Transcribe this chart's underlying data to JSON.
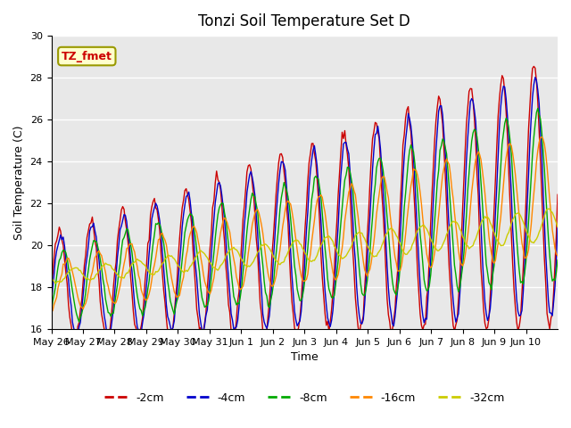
{
  "title": "Tonzi Soil Temperature Set D",
  "xlabel": "Time",
  "ylabel": "Soil Temperature (C)",
  "ylim": [
    16,
    30
  ],
  "background_color": "#ffffff",
  "plot_bg_color": "#e8e8e8",
  "grid_color": "#ffffff",
  "legend_label": "TZ_fmet",
  "series_labels": [
    "-2cm",
    "-4cm",
    "-8cm",
    "-16cm",
    "-32cm"
  ],
  "series_colors": [
    "#cc0000",
    "#0000cc",
    "#00aa00",
    "#ff8800",
    "#cccc00"
  ],
  "xtick_labels": [
    "May 26",
    "May 27",
    "May 28",
    "May 29",
    "May 30",
    "May 31",
    "Jun 1",
    "Jun 2",
    "Jun 3",
    "Jun 4",
    "Jun 5",
    "Jun 6",
    "Jun 7",
    "Jun 8",
    "Jun 9",
    "Jun 10"
  ],
  "num_days": 16,
  "yticks": [
    16,
    18,
    20,
    22,
    24,
    26,
    28,
    30
  ]
}
